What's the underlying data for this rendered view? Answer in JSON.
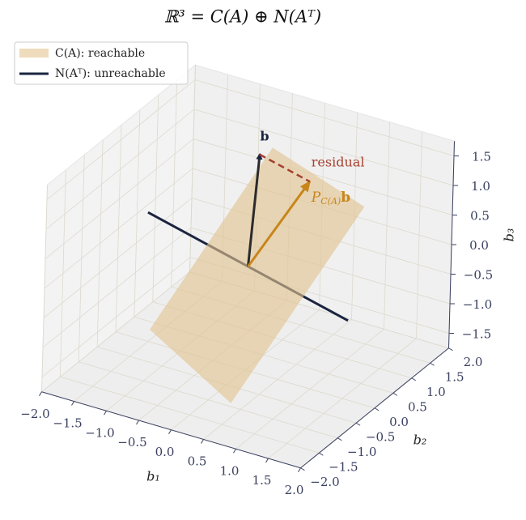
{
  "chart_data": {
    "type": "3d",
    "title": "ℝ³ = C(A) ⊕ N(Aᵀ)",
    "xlabel": "b₁",
    "ylabel": "b₂",
    "zlabel": "b₃",
    "xlim": [
      -2,
      2
    ],
    "ylim": [
      -2,
      2
    ],
    "zlim": [
      -1.75,
      1.75
    ],
    "xticks": [
      {
        "value": -2,
        "label": "−2.0"
      },
      {
        "value": -1.5,
        "label": "−1.5"
      },
      {
        "value": -1,
        "label": "−1.0"
      },
      {
        "value": -0.5,
        "label": "−0.5"
      },
      {
        "value": 0,
        "label": "0.0"
      },
      {
        "value": 0.5,
        "label": "0.5"
      },
      {
        "value": 1,
        "label": "1.0"
      },
      {
        "value": 1.5,
        "label": "1.5"
      },
      {
        "value": 2,
        "label": "2.0"
      }
    ],
    "yticks": [
      {
        "value": -2,
        "label": "−2.0"
      },
      {
        "value": -1.5,
        "label": "−1.5"
      },
      {
        "value": -1,
        "label": "−1.0"
      },
      {
        "value": -0.5,
        "label": "−0.5"
      },
      {
        "value": 0,
        "label": "0.0"
      },
      {
        "value": 0.5,
        "label": "0.5"
      },
      {
        "value": 1,
        "label": "1.0"
      },
      {
        "value": 1.5,
        "label": "1.5"
      },
      {
        "value": 2,
        "label": "2.0"
      }
    ],
    "zticks": [
      {
        "value": -1.5,
        "label": "−1.5"
      },
      {
        "value": -1,
        "label": "−1.0"
      },
      {
        "value": -0.5,
        "label": "−0.5"
      },
      {
        "value": 0,
        "label": "0.0"
      },
      {
        "value": 0.5,
        "label": "0.5"
      },
      {
        "value": 1,
        "label": "1.0"
      },
      {
        "value": 1.5,
        "label": "1.5"
      }
    ],
    "grid": true,
    "legend": "upper left",
    "plane": {
      "name": "C(A): reachable",
      "color": "#e2c48f",
      "x": [
        -0.6,
        1.77,
        0.91,
        -1.38
      ],
      "y": [
        1.67,
        -0.02,
        -2.01,
        -0.18
      ],
      "z": [
        0.97,
        1.59,
        -1.0,
        -1.42
      ]
    },
    "null_line": {
      "name": "N(Aᵀ): unreachable",
      "color": "#1b2440",
      "x": [
        -1,
        1
      ],
      "y": [
        -1,
        1
      ],
      "z": [
        1.1,
        -1.1
      ]
    },
    "vector_b": {
      "label": "b",
      "color": "#2b2b2b",
      "x": [
        0,
        -0.05
      ],
      "y": [
        0,
        0.33
      ],
      "z": [
        0,
        1.71
      ]
    },
    "projection": {
      "symbol": "P",
      "subscript": "C(A)",
      "vector": "b",
      "color": "#c8861a",
      "x": [
        0,
        0.45
      ],
      "y": [
        0,
        0.83
      ],
      "z": [
        0,
        1.16
      ]
    },
    "residual": {
      "label": "residual",
      "color": "#a5412f",
      "x": [
        -0.05,
        0.45
      ],
      "y": [
        0.33,
        0.83
      ],
      "z": [
        1.71,
        1.16
      ]
    }
  }
}
